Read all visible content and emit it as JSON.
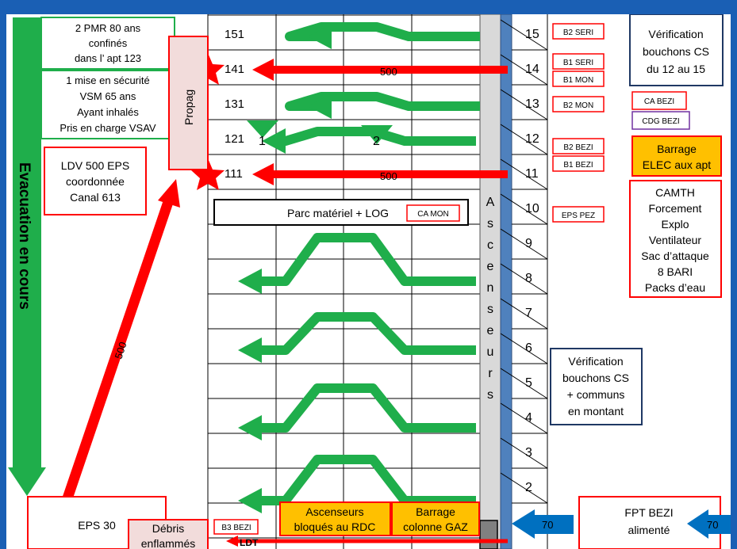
{
  "colors": {
    "frame": "#1a5fb4",
    "green": "#1fae4b",
    "red": "#ff0000",
    "orange": "#ffc000",
    "pink": "#f2dcdb",
    "asc": "#d9d9d9",
    "column": "#4f81bd",
    "blue_arrow": "#0070c0",
    "purple": "#7030a0",
    "navy": "#1f3864"
  },
  "evacuation": {
    "label": "Evacuation  en cours"
  },
  "top_left_boxes": [
    {
      "lines": [
        "2 PMR 80 ans",
        "confinés",
        "dans l’ apt 123"
      ]
    },
    {
      "lines": [
        "1 mise en sécurité",
        "VSM 65 ans",
        "Ayant inhalés",
        "Pris en charge VSAV"
      ]
    }
  ],
  "propag_label": "Propag",
  "ldv_box": {
    "lines": [
      "LDV 500 EPS",
      "coordonnée",
      "Canal 613"
    ]
  },
  "apartments": [
    "151",
    "141",
    "131",
    "121",
    "111"
  ],
  "floors": [
    "15",
    "14",
    "13",
    "12",
    "11",
    "10",
    "9",
    "8",
    "7",
    "6",
    "5",
    "4",
    "3",
    "2"
  ],
  "markers": [
    "1",
    "2"
  ],
  "hose_labels": {
    "f14": "500",
    "f11": "500",
    "diag": "500"
  },
  "parc_box": {
    "label": "Parc matériel + LOG",
    "tag": "CA MON"
  },
  "ascenseurs_letters": [
    "A",
    "s",
    "c",
    "e",
    "n",
    "s",
    "e",
    "u",
    "r",
    "s"
  ],
  "floor_tags": [
    {
      "floor": "15",
      "labels": [
        "B2 SERI"
      ]
    },
    {
      "floor": "14",
      "labels": [
        "B1 SERI",
        "B1 MON"
      ]
    },
    {
      "floor": "13",
      "labels": [
        "B2 MON"
      ]
    },
    {
      "floor": "12",
      "labels": [
        "B2 BEZI",
        "B1 BEZI"
      ]
    },
    {
      "floor": "10",
      "labels": [
        "EPS PEZ"
      ]
    }
  ],
  "right_top_box": {
    "lines": [
      "Vérification",
      "bouchons  CS",
      "du 12 au 15"
    ]
  },
  "ca_bezi": "CA BEZI",
  "cdg_bezi": "CDG BEZI",
  "barrage_elec": {
    "lines": [
      "Barrage",
      "ELEC aux apt"
    ]
  },
  "camth_box": {
    "lines": [
      "CAMTH",
      "Forcement",
      "Explo",
      "Ventilateur",
      "Sac d’attaque",
      "8 BARI",
      "Packs d’eau"
    ]
  },
  "verif_box": {
    "lines": [
      "Vérification",
      "bouchons  CS",
      "+ communs",
      "en montant"
    ]
  },
  "eps30": "EPS 30",
  "debris": {
    "lines": [
      "Débris",
      "enflammés"
    ]
  },
  "b3_bezi": "B3 BEZI",
  "ldt": "LDT",
  "asc_bloques": {
    "lines": [
      "Ascenseurs",
      "bloqués au RDC"
    ]
  },
  "barrage_gaz": {
    "lines": [
      "Barrage",
      "colonne GAZ"
    ]
  },
  "fpt_box": {
    "lines": [
      "FPT BEZI",
      "alimenté"
    ]
  },
  "pressure": {
    "left": "70",
    "right": "70"
  }
}
